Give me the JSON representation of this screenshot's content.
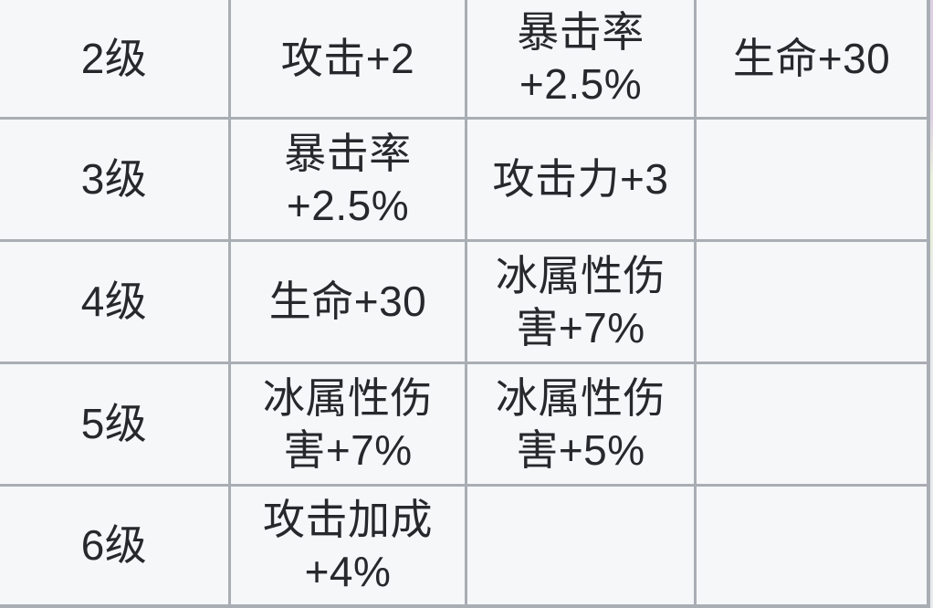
{
  "theme": {
    "cell_bg": "#f6f7f9",
    "line_color": "#a9aeb4",
    "text_color": "#26282c",
    "edge_top": "#ddd0e4",
    "edge_mid": "#eaf0dc",
    "edge_bottom": "#e9eaec"
  },
  "table": {
    "description": "Cropped upgrade-level stats table (game attribute bonuses per level)",
    "columns": [
      "level",
      "bonus_1",
      "bonus_2",
      "bonus_3"
    ],
    "rows": [
      [
        "2级",
        "攻击+2",
        "暴击率\n+2.5%",
        "生命+30"
      ],
      [
        "3级",
        "暴击率\n+2.5%",
        "攻击力+3",
        ""
      ],
      [
        "4级",
        "生命+30",
        "冰属性伤\n害+7%",
        ""
      ],
      [
        "5级",
        "冰属性伤\n害+7%",
        "冰属性伤\n害+5%",
        ""
      ],
      [
        "6级",
        "攻击加成\n+4%",
        "",
        ""
      ]
    ]
  }
}
